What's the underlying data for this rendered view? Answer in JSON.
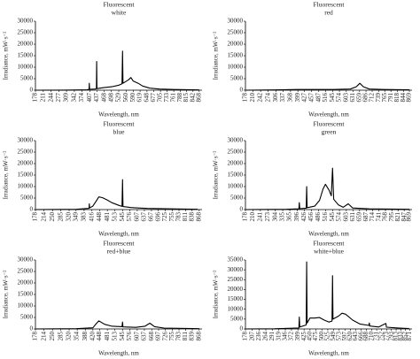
{
  "chart_data": [
    {
      "type": "line",
      "title": "Fluorescent",
      "subtitle": "white",
      "ylabel": "Irradiance, mW·s⁻²",
      "xlabel": "Wavelength, nm",
      "color": "#000000",
      "xlim": [
        178,
        880
      ],
      "ylim": [
        0,
        30000
      ],
      "yticks": [
        0,
        5000,
        10000,
        15000,
        20000,
        25000,
        30000
      ],
      "xticks": [
        178,
        211,
        244,
        277,
        309,
        342,
        374,
        407,
        437,
        468,
        498,
        529,
        560,
        590,
        619,
        648,
        677,
        705,
        733,
        761,
        788,
        815,
        842,
        868
      ],
      "x": [
        178,
        300,
        395,
        404,
        405,
        406,
        430,
        435,
        436,
        437,
        470,
        500,
        530,
        543,
        545,
        547,
        570,
        580,
        590,
        611,
        630,
        660,
        700,
        760,
        868
      ],
      "values": [
        0,
        50,
        200,
        400,
        3000,
        400,
        500,
        600,
        12500,
        700,
        1200,
        1500,
        2200,
        2800,
        17000,
        3000,
        4500,
        5500,
        4000,
        3000,
        1800,
        900,
        500,
        300,
        100
      ]
    },
    {
      "type": "line",
      "title": "Fluorescent",
      "subtitle": "red",
      "ylabel": "Irradiance, mW·s⁻²",
      "xlabel": "Wavelength, nm",
      "color": "#000000",
      "xlim": [
        178,
        880
      ],
      "ylim": [
        0,
        30000
      ],
      "yticks": [
        0,
        5000,
        10000,
        15000,
        20000,
        25000,
        30000
      ],
      "xticks": [
        178,
        210,
        242,
        274,
        306,
        337,
        368,
        399,
        427,
        457,
        487,
        516,
        545,
        574,
        603,
        631,
        659,
        686,
        712,
        739,
        765,
        791,
        818,
        844,
        869
      ],
      "x": [
        178,
        300,
        400,
        550,
        620,
        645,
        660,
        675,
        700,
        760,
        869
      ],
      "values": [
        0,
        100,
        300,
        300,
        500,
        1500,
        3000,
        1500,
        500,
        300,
        200
      ]
    },
    {
      "type": "line",
      "title": "Fluorescent",
      "subtitle": "blue",
      "ylabel": "Irradiance, mW·s⁻²",
      "xlabel": "Wavelength, nm",
      "color": "#000000",
      "xlim": [
        178,
        880
      ],
      "ylim": [
        0,
        30000
      ],
      "yticks": [
        0,
        5000,
        10000,
        15000,
        20000,
        25000,
        30000
      ],
      "xticks": [
        178,
        214,
        250,
        285,
        320,
        349,
        383,
        416,
        448,
        481,
        513,
        545,
        576,
        607,
        637,
        667,
        696,
        725,
        755,
        783,
        811,
        838,
        868
      ],
      "x": [
        178,
        350,
        400,
        404,
        405,
        406,
        420,
        436,
        445,
        460,
        480,
        500,
        530,
        543,
        545,
        547,
        580,
        610,
        650,
        750,
        862
      ],
      "values": [
        0,
        100,
        500,
        600,
        2500,
        700,
        1500,
        4000,
        5500,
        5200,
        4200,
        3000,
        1800,
        1400,
        13000,
        1300,
        900,
        700,
        500,
        300,
        100
      ]
    },
    {
      "type": "line",
      "title": "Fluorescent",
      "subtitle": "green",
      "ylabel": "Irradiance, mW·s⁻²",
      "xlabel": "Wavelength, nm",
      "color": "#000000",
      "xlim": [
        178,
        880
      ],
      "ylim": [
        0,
        30000
      ],
      "yticks": [
        0,
        5000,
        10000,
        15000,
        20000,
        25000,
        30000
      ],
      "xticks": [
        178,
        210,
        241,
        273,
        304,
        335,
        365,
        396,
        426,
        456,
        486,
        516,
        545,
        574,
        603,
        631,
        659,
        687,
        714,
        741,
        768,
        795,
        821,
        847,
        869
      ],
      "x": [
        178,
        350,
        403,
        405,
        407,
        434,
        436,
        438,
        470,
        490,
        505,
        515,
        530,
        540,
        545,
        550,
        570,
        590,
        611,
        630,
        700,
        869
      ],
      "values": [
        0,
        100,
        300,
        3000,
        400,
        600,
        10000,
        800,
        1500,
        4000,
        9000,
        11000,
        8500,
        6000,
        18000,
        4500,
        2000,
        1000,
        2500,
        700,
        300,
        100
      ]
    },
    {
      "type": "line",
      "title": "Fluorescent",
      "subtitle": "red+blue",
      "ylabel": "Irradiance, mW·s⁻²",
      "xlabel": "Wavelength, nm",
      "color": "#000000",
      "xlim": [
        178,
        880
      ],
      "ylim": [
        0,
        30000
      ],
      "yticks": [
        0,
        5000,
        10000,
        15000,
        20000,
        25000,
        30000
      ],
      "xticks": [
        178,
        214,
        250,
        285,
        320,
        354,
        388,
        420,
        448,
        481,
        513,
        545,
        576,
        607,
        637,
        668,
        697,
        726,
        755,
        783,
        811,
        839,
        868
      ],
      "x": [
        178,
        350,
        420,
        436,
        445,
        470,
        500,
        543,
        545,
        547,
        600,
        640,
        660,
        680,
        720,
        868
      ],
      "values": [
        0,
        100,
        500,
        2500,
        3500,
        2000,
        1200,
        1000,
        3000,
        900,
        700,
        1200,
        2500,
        1000,
        400,
        100
      ]
    },
    {
      "type": "line",
      "title": "Fluorescent",
      "subtitle": "white+blue",
      "ylabel": "Irradiance, mW·s⁻²",
      "xlabel": "Wavelength, nm",
      "color": "#000000",
      "xlim": [
        178,
        880
      ],
      "ylim": [
        0,
        35000
      ],
      "yticks": [
        0,
        5000,
        10000,
        15000,
        20000,
        25000,
        30000,
        35000
      ],
      "xticks": [
        178,
        207,
        236,
        264,
        291,
        319,
        346,
        372,
        399,
        425,
        450,
        475,
        500,
        525,
        549,
        573,
        597,
        620,
        643,
        666,
        688,
        710,
        731,
        752,
        773,
        793,
        813,
        833,
        852,
        871
      ],
      "x": [
        178,
        300,
        403,
        405,
        407,
        434,
        436,
        438,
        450,
        470,
        490,
        510,
        530,
        543,
        545,
        547,
        570,
        585,
        600,
        630,
        660,
        698,
        700,
        702,
        740,
        770,
        772,
        820,
        868
      ],
      "values": [
        0,
        100,
        500,
        6000,
        1000,
        2000,
        34000,
        3000,
        5500,
        5500,
        5800,
        4500,
        3500,
        4000,
        27000,
        5000,
        6500,
        8000,
        7500,
        4500,
        2500,
        1800,
        3000,
        1500,
        1000,
        2800,
        900,
        500,
        200
      ]
    }
  ]
}
